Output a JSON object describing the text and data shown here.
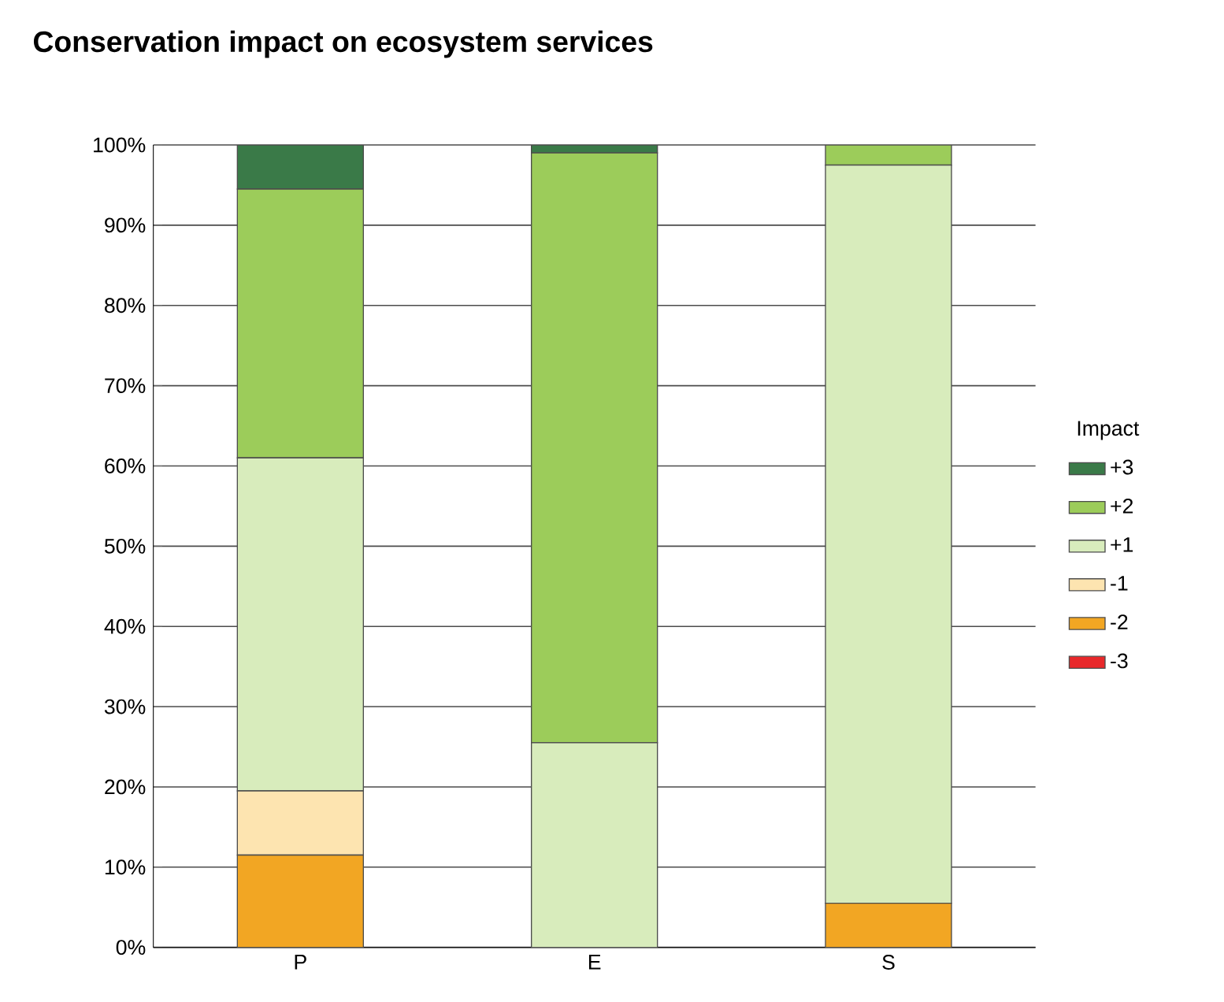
{
  "chart_data": {
    "type": "bar",
    "title": "Conservation impact on ecosystem services",
    "legend_title": "Impact",
    "stacked": true,
    "categories": [
      "P",
      "E",
      "S"
    ],
    "series": [
      {
        "name": "-3",
        "color": "#e8282a",
        "values": [
          0,
          0,
          0
        ]
      },
      {
        "name": "-2",
        "color": "#f2a623",
        "values": [
          11.5,
          0,
          5.5
        ]
      },
      {
        "name": "-1",
        "color": "#fde4b0",
        "values": [
          8,
          0,
          0
        ]
      },
      {
        "name": "+1",
        "color": "#d8ecbc",
        "values": [
          41.5,
          25.5,
          92
        ]
      },
      {
        "name": "+2",
        "color": "#9ccc5a",
        "values": [
          33.5,
          73.5,
          2.5
        ]
      },
      {
        "name": "+3",
        "color": "#3a7a48",
        "values": [
          5.5,
          1,
          0
        ]
      }
    ],
    "ylim": [
      0,
      100
    ],
    "yticks": [
      {
        "value": 0,
        "label": "0%"
      },
      {
        "value": 10,
        "label": "10%"
      },
      {
        "value": 20,
        "label": "20%"
      },
      {
        "value": 30,
        "label": "30%"
      },
      {
        "value": 40,
        "label": "40%"
      },
      {
        "value": 50,
        "label": "50%"
      },
      {
        "value": 60,
        "label": "60%"
      },
      {
        "value": 70,
        "label": "70%"
      },
      {
        "value": 80,
        "label": "80%"
      },
      {
        "value": 90,
        "label": "90%"
      },
      {
        "value": 100,
        "label": "100%"
      }
    ],
    "grid": "y",
    "legend": "right"
  }
}
